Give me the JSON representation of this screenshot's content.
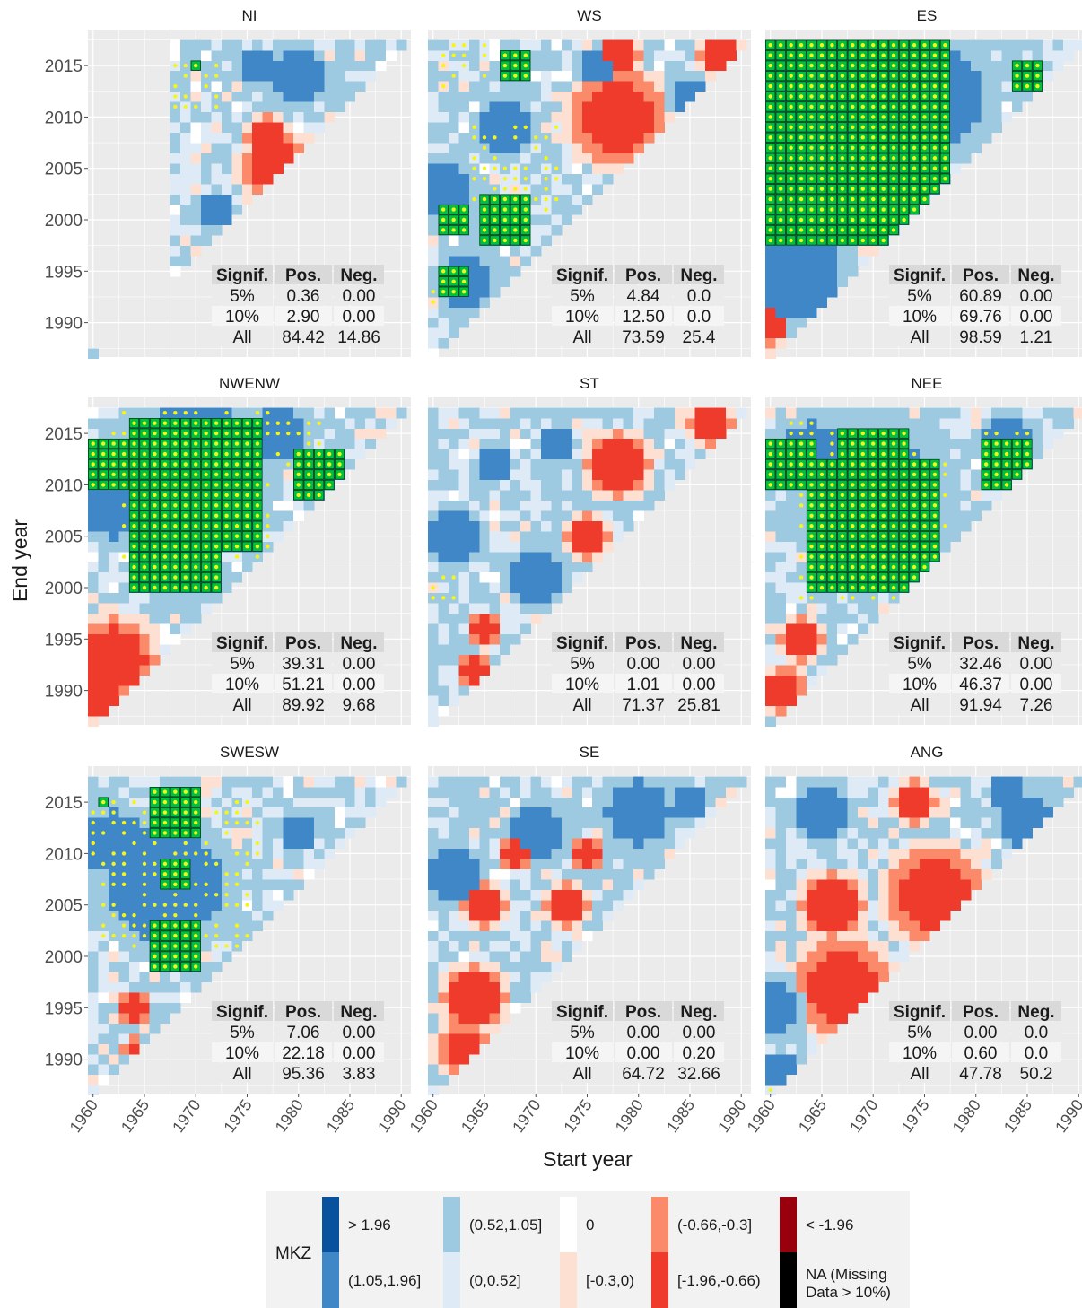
{
  "chart_data": {
    "type": "heatmap",
    "xlabel": "Start year",
    "ylabel": "End year",
    "x_ticks": [
      1960,
      1965,
      1970,
      1975,
      1980,
      1985,
      1990
    ],
    "y_ticks": [
      1990,
      1995,
      2000,
      2005,
      2010,
      2015
    ],
    "xlim": [
      1960,
      1991
    ],
    "ylim": [
      1987,
      2018
    ],
    "grid": true,
    "table_header": [
      "Signif.",
      "Pos.",
      "Neg."
    ],
    "legend": {
      "title": "MKZ",
      "position": "bottom",
      "items": [
        {
          "label": "> 1.96",
          "color": "#08519c"
        },
        {
          "label": "(1.05,1.96]",
          "color": "#3f87c6"
        },
        {
          "label": "(0.52,1.05]",
          "color": "#9ecae1"
        },
        {
          "label": "(0,0.52]",
          "color": "#deebf7"
        },
        {
          "label": "0",
          "color": "#ffffff"
        },
        {
          "label": "[-0.3,0)",
          "color": "#fde0d2"
        },
        {
          "label": "(-0.66,-0.3]",
          "color": "#fb8a6a"
        },
        {
          "label": "[-1.96,-0.66)",
          "color": "#ef3b2c"
        },
        {
          "label": "< -1.96",
          "color": "#99000d"
        },
        {
          "label": "NA (Missing Data > 10%)",
          "color": "#000000"
        }
      ]
    },
    "panels": [
      {
        "name": "NI",
        "min_start": 1968,
        "max_end": 2017,
        "table": [
          [
            "5%",
            "0.36",
            "0.00"
          ],
          [
            "10%",
            "2.90",
            "0.00"
          ],
          [
            "All",
            "84.42",
            "14.86"
          ]
        ],
        "pos": [
          [
            1961,
            1990,
            3
          ],
          [
            1976,
            2015,
            2
          ],
          [
            1980,
            2014,
            3
          ],
          [
            1972,
            2001,
            2
          ]
        ],
        "neg": [
          [
            1978,
            2005,
            3.5
          ],
          [
            1977,
            2008,
            2
          ]
        ],
        "sig5": [
          [
            1970,
            2015,
            0.8
          ]
        ],
        "sig10": [
          [
            1970,
            2013,
            2
          ]
        ]
      },
      {
        "name": "WS",
        "min_start": 1960,
        "max_end": 2017,
        "table": [
          [
            "5%",
            "4.84",
            "0.0"
          ],
          [
            "10%",
            "12.50",
            "0.0"
          ],
          [
            "All",
            "73.59",
            "25.4"
          ]
        ],
        "pos": [
          [
            1961,
            2003,
            3.5
          ],
          [
            1963,
            1994,
            3
          ],
          [
            1967,
            2009,
            3
          ],
          [
            1976,
            2015,
            2
          ],
          [
            1985,
            2012,
            2
          ]
        ],
        "neg": [
          [
            1978,
            2010,
            4.5
          ],
          [
            1978,
            2016,
            2
          ],
          [
            1988,
            2016,
            2
          ]
        ],
        "sig5": [
          [
            1962,
            2000,
            1.5
          ],
          [
            1967,
            2000,
            2
          ],
          [
            1962,
            1994,
            1
          ],
          [
            1968,
            2015,
            1
          ]
        ],
        "sig10": [
          [
            1963,
            2015,
            2.5
          ],
          [
            1968,
            2005,
            4
          ],
          [
            1961,
            1992,
            1.5
          ]
        ]
      },
      {
        "name": "ES",
        "min_start": 1960,
        "max_end": 2017,
        "table": [
          [
            "5%",
            "60.89",
            "0.00"
          ],
          [
            "10%",
            "69.76",
            "0.00"
          ],
          [
            "All",
            "98.59",
            "1.21"
          ]
        ],
        "pos": [
          [
            1976,
            2012,
            6
          ],
          [
            1962,
            1995,
            6
          ],
          [
            1962,
            2005,
            8
          ]
        ],
        "neg": [
          [
            1960,
            1990,
            2
          ]
        ],
        "sig5": [
          [
            1967,
            2008,
            10
          ],
          [
            1965,
            2015,
            6
          ],
          [
            1985,
            2014,
            1
          ]
        ],
        "sig10": [
          [
            1968,
            2014,
            9
          ],
          [
            1986,
            2012,
            1.5
          ],
          [
            1975,
            2015,
            2
          ]
        ]
      },
      {
        "name": "NWENW",
        "min_start": 1960,
        "max_end": 2017,
        "table": [
          [
            "5%",
            "39.31",
            "0.00"
          ],
          [
            "10%",
            "51.21",
            "0.00"
          ],
          [
            "All",
            "89.92",
            "9.68"
          ]
        ],
        "pos": [
          [
            1970,
            2012,
            8
          ],
          [
            1962,
            2008,
            4
          ],
          [
            1978,
            2015,
            3
          ]
        ],
        "neg": [
          [
            1962,
            1993,
            4
          ],
          [
            1961,
            1989,
            2
          ]
        ],
        "sig5": [
          [
            1970,
            2010,
            6
          ],
          [
            1968,
            2004,
            4
          ],
          [
            1962,
            2012,
            2
          ],
          [
            1982,
            2011,
            2
          ]
        ],
        "sig10": [
          [
            1970,
            2010,
            7
          ],
          [
            1964,
            2014,
            2.5
          ],
          [
            1980,
            2014,
            2
          ]
        ]
      },
      {
        "name": "ST",
        "min_start": 1960,
        "max_end": 2017,
        "table": [
          [
            "5%",
            "0.00",
            "0.00"
          ],
          [
            "10%",
            "1.01",
            "0.00"
          ],
          [
            "All",
            "71.37",
            "25.81"
          ]
        ],
        "pos": [
          [
            1970,
            2001,
            3
          ],
          [
            1962,
            2005,
            3
          ],
          [
            1966,
            2012,
            2
          ],
          [
            1972,
            2014,
            2
          ]
        ],
        "neg": [
          [
            1978,
            2012,
            3
          ],
          [
            1975,
            2005,
            2
          ],
          [
            1965,
            1996,
            1.5
          ],
          [
            1987,
            2016,
            2
          ],
          [
            1964,
            1992,
            1.5
          ]
        ],
        "sig5": [],
        "sig10": [
          [
            1961,
            2000,
            1.5
          ],
          [
            1961,
            1987,
            0.6
          ],
          [
            1961,
            1994,
            0.6
          ]
        ]
      },
      {
        "name": "NEE",
        "min_start": 1960,
        "max_end": 2017,
        "table": [
          [
            "5%",
            "32.46",
            "0.00"
          ],
          [
            "10%",
            "46.37",
            "0.00"
          ],
          [
            "All",
            "91.94",
            "7.26"
          ]
        ],
        "pos": [
          [
            1970,
            2009,
            8
          ],
          [
            1964,
            2013,
            4
          ],
          [
            1983,
            2014,
            3
          ]
        ],
        "neg": [
          [
            1963,
            1995,
            2
          ],
          [
            1961,
            1990,
            2
          ],
          [
            1962,
            1991,
            1.2
          ]
        ],
        "sig5": [
          [
            1970,
            2006,
            6
          ],
          [
            1970,
            2012,
            3
          ],
          [
            1962,
            2012,
            2
          ],
          [
            1983,
            2012,
            2
          ]
        ],
        "sig10": [
          [
            1970,
            2006,
            7
          ],
          [
            1964,
            2014,
            2.5
          ],
          [
            1983,
            2014,
            2.5
          ]
        ]
      },
      {
        "name": "SWESW",
        "min_start": 1960,
        "max_end": 2017,
        "table": [
          [
            "5%",
            "7.06",
            "0.00"
          ],
          [
            "10%",
            "22.18",
            "0.00"
          ],
          [
            "All",
            "95.36",
            "3.83"
          ]
        ],
        "pos": [
          [
            1967,
            2007,
            7
          ],
          [
            1962,
            2011,
            4
          ],
          [
            1980,
            2012,
            2
          ]
        ],
        "neg": [
          [
            1964,
            1995,
            1.5
          ],
          [
            1964,
            1991,
            1
          ]
        ],
        "sig5": [
          [
            1968,
            2014,
            2
          ],
          [
            1968,
            2001,
            2
          ],
          [
            1968,
            2008,
            1.5
          ],
          [
            1961,
            2015,
            0.8
          ],
          [
            1974,
            2000,
            0.8
          ]
        ],
        "sig10": [
          [
            1968,
            2008,
            7
          ],
          [
            1962,
            2012,
            2
          ],
          [
            1974,
            2012,
            2
          ]
        ]
      },
      {
        "name": "SE",
        "min_start": 1960,
        "max_end": 2017,
        "table": [
          [
            "5%",
            "0.00",
            "0.00"
          ],
          [
            "10%",
            "0.00",
            "0.20"
          ],
          [
            "All",
            "64.72",
            "32.66"
          ]
        ],
        "pos": [
          [
            1980,
            2014,
            4
          ],
          [
            1970,
            2012,
            3
          ],
          [
            1962,
            2008,
            3
          ],
          [
            1985,
            2015,
            2
          ]
        ],
        "neg": [
          [
            1964,
            1996,
            3
          ],
          [
            1963,
            1991,
            2.5
          ],
          [
            1965,
            2005,
            2
          ],
          [
            1973,
            2005,
            2
          ],
          [
            1968,
            2010,
            1.5
          ],
          [
            1975,
            2010,
            1.5
          ]
        ],
        "sig5": [],
        "sig10": [
          [
            1965,
            1991,
            0.6
          ]
        ]
      },
      {
        "name": "ANG",
        "min_start": 1960,
        "max_end": 2017,
        "table": [
          [
            "5%",
            "0.00",
            "0.0"
          ],
          [
            "10%",
            "0.60",
            "0.0"
          ],
          [
            "All",
            "47.78",
            "50.2"
          ]
        ],
        "pos": [
          [
            1960,
            1995,
            3.5
          ],
          [
            1985,
            2013,
            3
          ],
          [
            1965,
            2014,
            3
          ],
          [
            1961,
            1989,
            2
          ],
          [
            1983,
            2016,
            2
          ]
        ],
        "neg": [
          [
            1967,
            1997,
            4.5
          ],
          [
            1976,
            2006,
            4.5
          ],
          [
            1966,
            2005,
            3
          ],
          [
            1974,
            2015,
            2
          ]
        ],
        "sig5": [],
        "sig10": [
          [
            1988,
            2015,
            0.8
          ],
          [
            1960,
            1987,
            0.6
          ]
        ]
      }
    ]
  }
}
